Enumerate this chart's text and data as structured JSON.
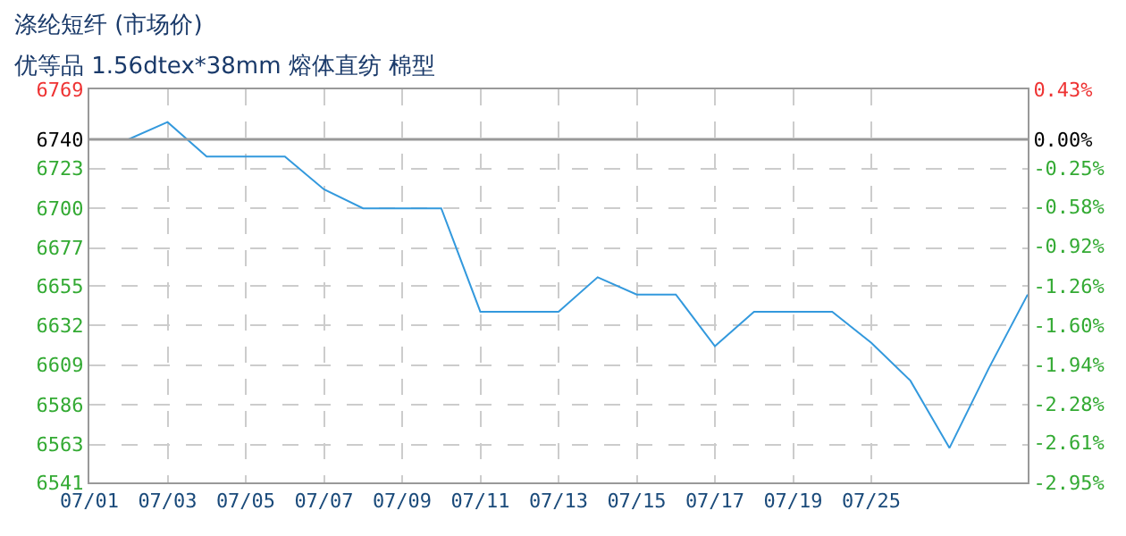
{
  "chart_data": {
    "type": "line",
    "title": "涤纶短纤 (市场价)",
    "subtitle": "优等品 1.56dtex*38mm 熔体直纺 棉型",
    "categories": [
      "07/01",
      null,
      "07/03",
      null,
      "07/05",
      null,
      "07/07",
      null,
      "07/09",
      null,
      "07/11",
      null,
      "07/13",
      null,
      "07/15",
      null,
      "07/17",
      null,
      "07/19",
      null,
      "07/25",
      null,
      null,
      null,
      null
    ],
    "series": [
      {
        "color": "#3399dd",
        "values": [
          6740,
          6740,
          6750,
          6730,
          6730,
          6730,
          6711,
          6700,
          6700,
          6700,
          6640,
          6640,
          6640,
          6660,
          6650,
          6650,
          6620,
          6640,
          6640,
          6640,
          6622,
          6600,
          6561,
          6607,
          6650
        ]
      }
    ],
    "ylim": [
      6541,
      6769
    ],
    "yticks": [
      6541,
      6563,
      6586,
      6609,
      6632,
      6655,
      6677,
      6700,
      6723,
      6740,
      6769
    ],
    "y2lim": [
      -2.95,
      0.43
    ],
    "y2ticks": [
      {
        "value": -2.95,
        "label": "-2.95%"
      },
      {
        "value": -2.61,
        "label": "-2.61%"
      },
      {
        "value": -2.28,
        "label": "-2.28%"
      },
      {
        "value": -1.94,
        "label": "-1.94%"
      },
      {
        "value": -1.6,
        "label": "-1.60%"
      },
      {
        "value": -1.26,
        "label": "-1.26%"
      },
      {
        "value": -0.92,
        "label": "-0.92%"
      },
      {
        "value": -0.58,
        "label": "-0.58%"
      },
      {
        "value": -0.25,
        "label": "-0.25%"
      },
      {
        "value": 0,
        "label": "0.00%"
      },
      {
        "value": 0.43,
        "label": "0.43%"
      }
    ],
    "ref_lines": [
      {
        "axis": "y",
        "value": 6740,
        "color": "#999999"
      }
    ],
    "grid": true,
    "marker": "none",
    "line_style": "solid"
  }
}
